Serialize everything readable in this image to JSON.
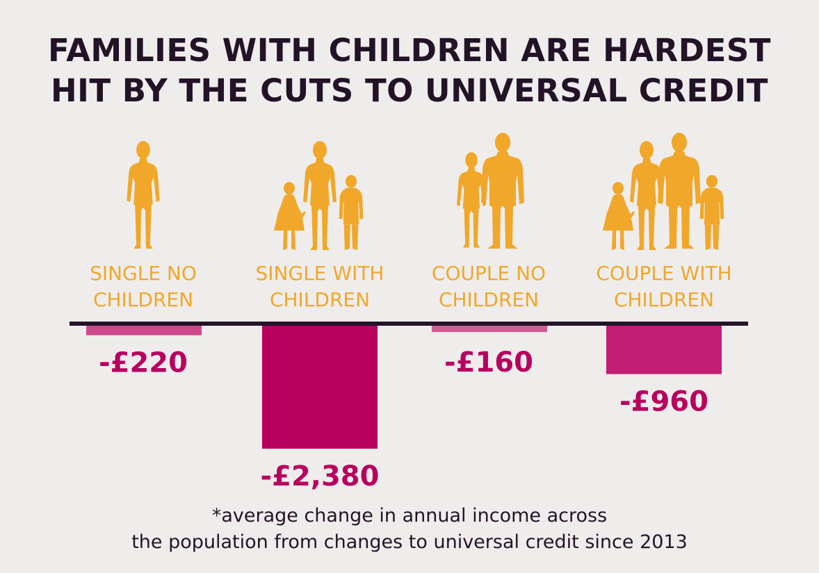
{
  "title_lines": [
    "FAMILIES WITH CHILDREN ARE HARDEST",
    "HIT BY THE CUTS TO UNIVERSAL CREDIT"
  ],
  "footnote_lines": [
    "*average change in annual income across",
    "the population from changes to universal credit since 2013"
  ],
  "colors": {
    "background": "#efedec",
    "title": "#231327",
    "figures": "#f0a72a",
    "category_text": "#f0a72a",
    "axis": "#231327",
    "value_text": "#b8005f",
    "bars": [
      "#cf4a8c",
      "#b8005f",
      "#d05d94",
      "#c21e74"
    ]
  },
  "chart_data": {
    "type": "bar",
    "orientation": "vertical-negative",
    "categories": [
      {
        "lines": [
          "SINGLE NO",
          "CHILDREN"
        ],
        "figure_icons": [
          "adult-female-icon"
        ]
      },
      {
        "lines": [
          "SINGLE WITH",
          "CHILDREN"
        ],
        "figure_icons": [
          "girl-child-icon",
          "adult-female-icon",
          "boy-child-icon"
        ]
      },
      {
        "lines": [
          "COUPLE NO",
          "CHILDREN"
        ],
        "figure_icons": [
          "adult-female-icon",
          "adult-male-icon"
        ]
      },
      {
        "lines": [
          "COUPLE WITH",
          "CHILDREN"
        ],
        "figure_icons": [
          "girl-child-icon",
          "adult-female-icon",
          "adult-male-icon",
          "boy-child-icon"
        ]
      }
    ],
    "values": [
      -220,
      -2380,
      -160,
      -960
    ],
    "value_labels": [
      "-£220",
      "-£2,380",
      "-£160",
      "-£960"
    ],
    "ylim": [
      -2380,
      0
    ],
    "grid": false,
    "legend": "none"
  }
}
